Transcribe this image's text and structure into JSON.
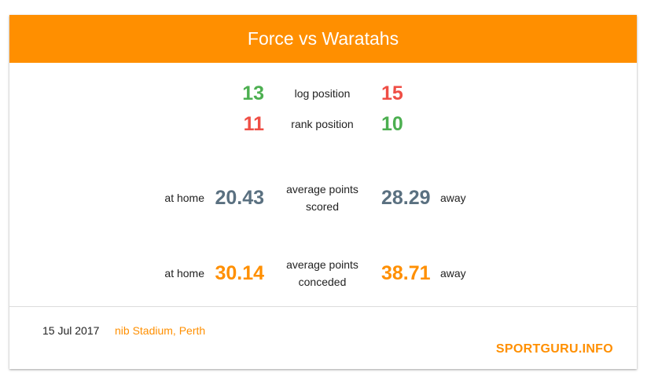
{
  "header": {
    "title": "Force vs Waratahs"
  },
  "colors": {
    "accent": "#ff8f00",
    "green": "#4caf50",
    "red": "#ef4e45",
    "slate": "#5a7080"
  },
  "log_position": {
    "label": "log position",
    "home": "13",
    "away": "15"
  },
  "rank_position": {
    "label": "rank position",
    "home": "11",
    "away": "10"
  },
  "points_scored": {
    "label_line1": "average points",
    "label_line2": "scored",
    "home_label": "at home",
    "home_value": "20.43",
    "away_value": "28.29",
    "away_label": "away"
  },
  "points_conceded": {
    "label_line1": "average points",
    "label_line2": "conceded",
    "home_label": "at home",
    "home_value": "30.14",
    "away_value": "38.71",
    "away_label": "away"
  },
  "footer": {
    "date": "15 Jul 2017",
    "venue": "nib Stadium, Perth",
    "brand": "SPORTGURU.INFO"
  }
}
